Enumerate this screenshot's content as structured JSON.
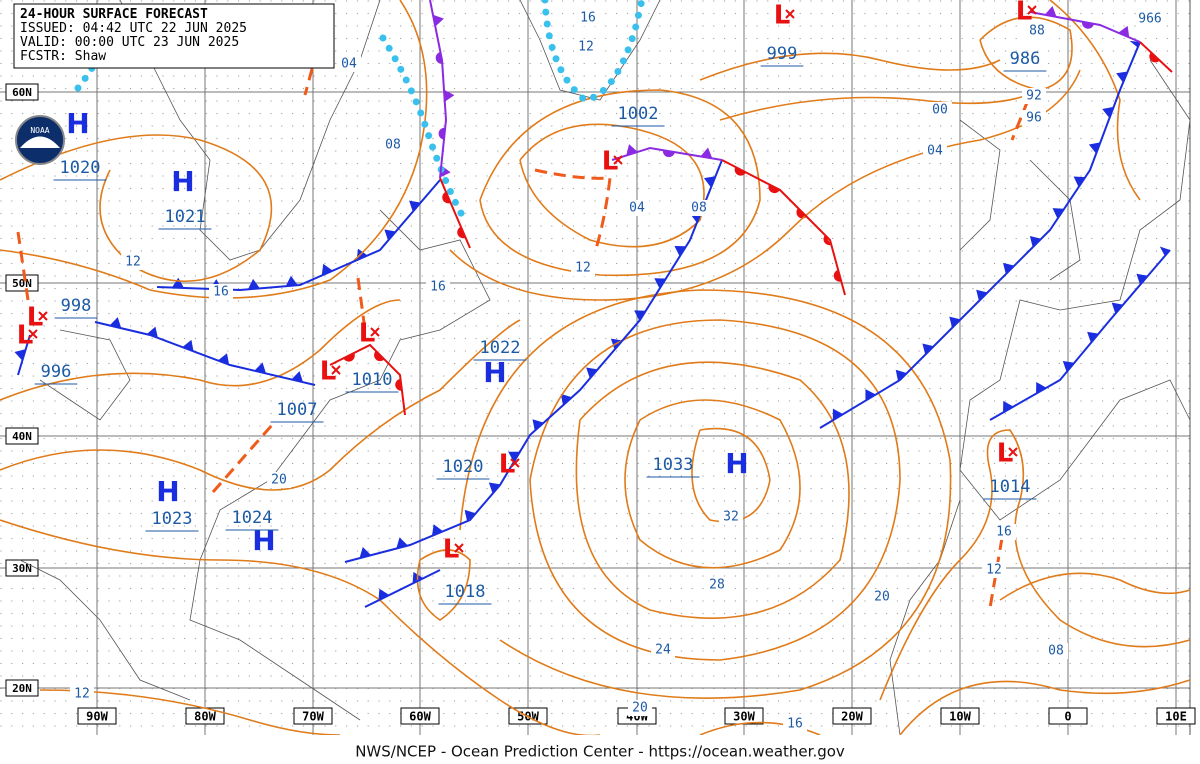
{
  "header": {
    "lines": [
      "24-HOUR SURFACE FORECAST",
      "ISSUED: 04:42 UTC 22 JUN 2025",
      "VALID:  00:00 UTC 23 JUN 2025",
      "FCSTR:  Shaw"
    ],
    "logo": "NOAA"
  },
  "footer": "NWS/NCEP - Ocean Prediction Center - https://ocean.weather.gov",
  "lat_labels": [
    "60N",
    "50N",
    "40N",
    "30N",
    "20N"
  ],
  "lon_labels": [
    "90W",
    "80W",
    "70W",
    "60W",
    "50W",
    "40W",
    "30W",
    "20W",
    "10W",
    "0",
    "10E"
  ],
  "centers": [
    {
      "symbol": "H",
      "value": "1020"
    },
    {
      "symbol": "H",
      "value": "1021"
    },
    {
      "symbol": "L",
      "value": "998"
    },
    {
      "symbol": "L",
      "value": "996"
    },
    {
      "symbol": "L",
      "value": "1007"
    },
    {
      "symbol": "L",
      "value": "1010"
    },
    {
      "symbol": "H",
      "value": "1022"
    },
    {
      "symbol": "L",
      "value": "1002"
    },
    {
      "symbol": "L",
      "value": "999"
    },
    {
      "symbol": "L",
      "value": "986"
    },
    {
      "symbol": "H",
      "value": "1033"
    },
    {
      "symbol": "L",
      "value": "1020"
    },
    {
      "symbol": "L",
      "value": "1018"
    },
    {
      "symbol": "H",
      "value": "1023"
    },
    {
      "symbol": "H",
      "value": "1024"
    },
    {
      "symbol": "L",
      "value": "1014"
    }
  ],
  "isobar_labels": [
    "16",
    "12",
    "04",
    "08",
    "12",
    "16",
    "16",
    "04",
    "08",
    "12",
    "00",
    "04",
    "88",
    "966",
    "92",
    "96",
    "20",
    "32",
    "28",
    "24",
    "20",
    "20",
    "16",
    "16",
    "12",
    "08",
    "12"
  ]
}
